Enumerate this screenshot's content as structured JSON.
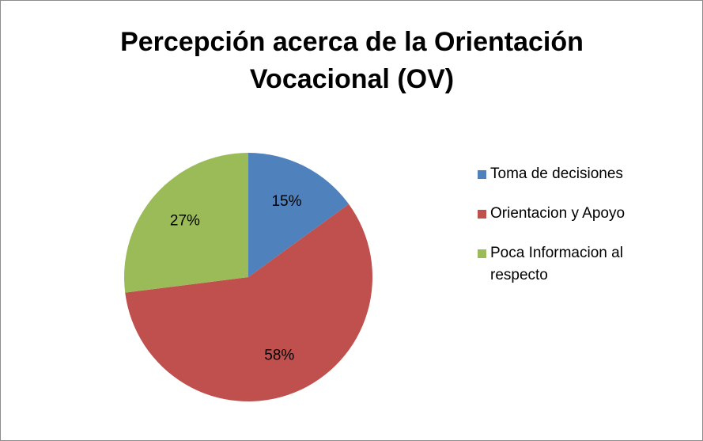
{
  "chart_data": {
    "type": "pie",
    "title": "Percepción acerca de la Orientación Vocacional (OV)",
    "categories": [
      "Toma de decisiones",
      "Orientacion y Apoyo",
      "Poca Informacion al respecto"
    ],
    "values": [
      15,
      58,
      27
    ],
    "value_labels": [
      "15%",
      "58%",
      "27%"
    ],
    "colors": [
      "#4f81bd",
      "#c0504d",
      "#9bbb59"
    ],
    "legend": "right"
  }
}
